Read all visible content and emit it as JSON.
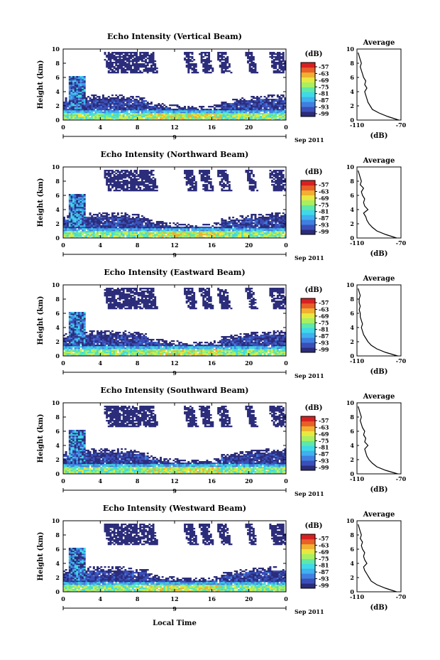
{
  "figure": {
    "xlabel": "Local Time",
    "date_label": "Sep 2011",
    "day_label": "9",
    "colorbar_unit": "(dB)",
    "average_title": "Average",
    "average_xlabel": "(dB)",
    "colorbar_ticks": [
      "-57",
      "-63",
      "-69",
      "-75",
      "-81",
      "-87",
      "-93",
      "-99"
    ],
    "colormap": [
      "#2b2c7a",
      "#3b4fb8",
      "#3f7fe0",
      "#3fb0f0",
      "#3fd9e8",
      "#5fe8a8",
      "#a8f060",
      "#e8e840",
      "#f0b030",
      "#e86028",
      "#d82020"
    ]
  },
  "chart_data": [
    {
      "type": "heatmap",
      "title": "Echo Intensity (Vertical Beam)",
      "ylabel": "Height (km)",
      "x_ticks": [
        "0",
        "4",
        "8",
        "12",
        "16",
        "20",
        "0"
      ],
      "xlim": [
        0,
        24
      ],
      "y_ticks": [
        "0",
        "2",
        "4",
        "6",
        "8",
        "10"
      ],
      "ylim": [
        0,
        10
      ],
      "colorbar_range": [
        -99,
        -57
      ],
      "average_profile": {
        "xlim": [
          -110,
          -70
        ],
        "x_ticks": [
          "-110",
          "-70"
        ],
        "y_ticks": [
          "0",
          "2",
          "4",
          "6",
          "8",
          "10"
        ],
        "height_km": [
          0,
          0.5,
          1,
          1.5,
          2,
          2.5,
          3,
          3.5,
          4,
          4.5,
          5,
          5.5,
          6,
          6.5,
          7,
          7.5,
          8,
          8.5,
          9,
          9.5
        ],
        "db": [
          -72,
          -82,
          -90,
          -96,
          -98,
          -100,
          -101,
          -102,
          -103,
          -101,
          -103,
          -102,
          -104,
          -105,
          -106,
          -107,
          -106,
          -107,
          -108,
          -109
        ]
      }
    },
    {
      "type": "heatmap",
      "title": "Echo Intensity (Northward Beam)",
      "ylabel": "Height (km)",
      "x_ticks": [
        "0",
        "4",
        "8",
        "12",
        "16",
        "20",
        "0"
      ],
      "xlim": [
        0,
        24
      ],
      "y_ticks": [
        "0",
        "2",
        "4",
        "6",
        "8",
        "10"
      ],
      "ylim": [
        0,
        10
      ],
      "colorbar_range": [
        -99,
        -57
      ],
      "average_profile": {
        "xlim": [
          -110,
          -70
        ],
        "x_ticks": [
          "-110",
          "-70"
        ],
        "y_ticks": [
          "0",
          "2",
          "4",
          "6",
          "8",
          "10"
        ],
        "height_km": [
          0,
          0.5,
          1,
          1.5,
          2,
          2.5,
          3,
          3.5,
          4,
          4.5,
          5,
          5.5,
          6,
          6.5,
          7,
          7.5,
          8,
          8.5,
          9,
          9.5
        ],
        "db": [
          -74,
          -84,
          -92,
          -96,
          -99,
          -101,
          -102,
          -104,
          -100,
          -103,
          -104,
          -103,
          -105,
          -106,
          -104,
          -107,
          -106,
          -107,
          -108,
          -109
        ]
      }
    },
    {
      "type": "heatmap",
      "title": "Echo Intensity (Eastward Beam)",
      "ylabel": "Height (km)",
      "x_ticks": [
        "0",
        "4",
        "8",
        "12",
        "16",
        "20",
        "0"
      ],
      "xlim": [
        0,
        24
      ],
      "y_ticks": [
        "0",
        "2",
        "4",
        "6",
        "8",
        "10"
      ],
      "ylim": [
        0,
        10
      ],
      "colorbar_range": [
        -99,
        -57
      ],
      "average_profile": {
        "xlim": [
          -110,
          -70
        ],
        "x_ticks": [
          "-110",
          "-70"
        ],
        "y_ticks": [
          "0",
          "2",
          "4",
          "6",
          "8",
          "10"
        ],
        "height_km": [
          0,
          0.5,
          1,
          1.5,
          2,
          2.5,
          3,
          3.5,
          4,
          4.5,
          5,
          5.5,
          6,
          6.5,
          7,
          7.5,
          8,
          8.5,
          9,
          9.5
        ],
        "db": [
          -73,
          -84,
          -92,
          -97,
          -100,
          -102,
          -104,
          -105,
          -106,
          -105,
          -106,
          -107,
          -107,
          -108,
          -107,
          -108,
          -108,
          -107,
          -108,
          -109
        ]
      }
    },
    {
      "type": "heatmap",
      "title": "Echo Intensity (Southward Beam)",
      "ylabel": "Height (km)",
      "x_ticks": [
        "0",
        "4",
        "8",
        "12",
        "16",
        "20",
        "0"
      ],
      "xlim": [
        0,
        24
      ],
      "y_ticks": [
        "0",
        "2",
        "4",
        "6",
        "8",
        "10"
      ],
      "ylim": [
        0,
        10
      ],
      "colorbar_range": [
        -99,
        -57
      ],
      "average_profile": {
        "xlim": [
          -110,
          -70
        ],
        "x_ticks": [
          "-110",
          "-70"
        ],
        "y_ticks": [
          "0",
          "2",
          "4",
          "6",
          "8",
          "10"
        ],
        "height_km": [
          0,
          0.5,
          1,
          1.5,
          2,
          2.5,
          3,
          3.5,
          4,
          4.5,
          5,
          5.5,
          6,
          6.5,
          7,
          7.5,
          8,
          8.5,
          9,
          9.5
        ],
        "db": [
          -73,
          -84,
          -92,
          -96,
          -99,
          -101,
          -102,
          -103,
          -100,
          -103,
          -102,
          -104,
          -103,
          -105,
          -106,
          -107,
          -106,
          -107,
          -108,
          -109
        ]
      }
    },
    {
      "type": "heatmap",
      "title": "Echo Intensity (Westward Beam)",
      "ylabel": "Height (km)",
      "x_ticks": [
        "0",
        "4",
        "8",
        "12",
        "16",
        "20",
        "0"
      ],
      "xlim": [
        0,
        24
      ],
      "y_ticks": [
        "0",
        "2",
        "4",
        "6",
        "8",
        "10"
      ],
      "ylim": [
        0,
        10
      ],
      "colorbar_range": [
        -99,
        -57
      ],
      "average_profile": {
        "xlim": [
          -110,
          -70
        ],
        "x_ticks": [
          "-110",
          "-70"
        ],
        "y_ticks": [
          "0",
          "2",
          "4",
          "6",
          "8",
          "10"
        ],
        "height_km": [
          0,
          0.5,
          1,
          1.5,
          2,
          2.5,
          3,
          3.5,
          4,
          4.5,
          5,
          5.5,
          6,
          6.5,
          7,
          7.5,
          8,
          8.5,
          9,
          9.5
        ],
        "db": [
          -74,
          -84,
          -92,
          -97,
          -99,
          -101,
          -103,
          -104,
          -101,
          -103,
          -104,
          -103,
          -105,
          -106,
          -105,
          -107,
          -106,
          -107,
          -108,
          -109
        ]
      }
    }
  ]
}
